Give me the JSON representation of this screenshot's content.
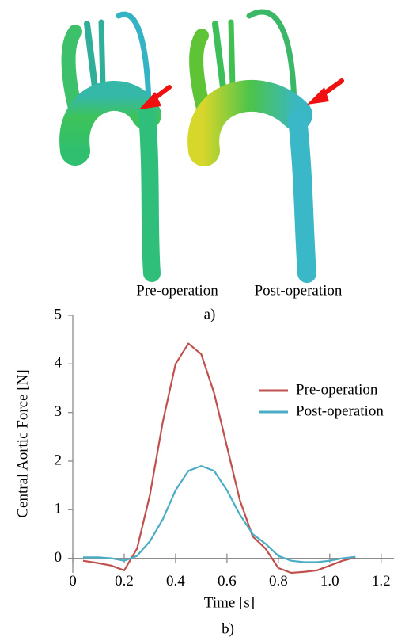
{
  "panel_a": {
    "labels": [
      "Pre-operation",
      "Post-operation"
    ],
    "caption": "a)"
  },
  "chart_data": {
    "type": "line",
    "caption": "b)",
    "x_label": "Time [s]",
    "y_label": "Central Aortic Force [N]",
    "x": [
      0.04,
      0.1,
      0.15,
      0.2,
      0.25,
      0.3,
      0.35,
      0.4,
      0.45,
      0.5,
      0.55,
      0.6,
      0.65,
      0.7,
      0.75,
      0.8,
      0.85,
      0.9,
      0.95,
      1.0,
      1.05,
      1.1
    ],
    "series": [
      {
        "name": "Pre-operation",
        "color": "#c0504d",
        "values": [
          -0.05,
          -0.1,
          -0.15,
          -0.25,
          0.2,
          1.3,
          2.8,
          4.0,
          4.42,
          4.2,
          3.4,
          2.3,
          1.2,
          0.45,
          0.2,
          -0.2,
          -0.3,
          -0.28,
          -0.25,
          -0.15,
          -0.05,
          0.02
        ]
      },
      {
        "name": "Post-operation",
        "color": "#4bacc6",
        "values": [
          0.02,
          0.02,
          0,
          -0.05,
          0.05,
          0.35,
          0.8,
          1.4,
          1.8,
          1.9,
          1.8,
          1.4,
          0.9,
          0.5,
          0.3,
          0.05,
          -0.05,
          -0.08,
          -0.08,
          -0.05,
          0,
          0.03
        ]
      }
    ],
    "xlim": [
      0,
      1.25
    ],
    "ylim": [
      -0.3,
      5
    ],
    "xticks": [
      0,
      0.2,
      0.4,
      0.6,
      0.8,
      {
        "value": 1,
        "label": "1.0"
      },
      1.2
    ],
    "yticks": [
      0,
      1,
      2,
      3,
      4,
      5
    ],
    "grid": false,
    "legend": "right"
  }
}
